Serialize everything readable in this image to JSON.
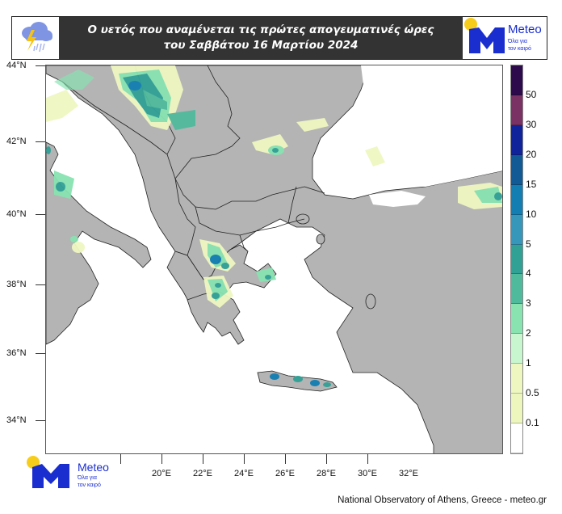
{
  "header": {
    "title_line1": "Ο υετός που αναμένεται τις πρώτες απογευματινές ώρες",
    "title_line2": "του Σαββάτου 16 Μαρτίου 2024",
    "left_icon": "rain-thunder-cloud-icon",
    "logo": {
      "name": "Meteo",
      "tagline_line1": "Όλα για",
      "tagline_line2": "τον καιρό"
    }
  },
  "map": {
    "land_color": "#b4b4b4",
    "sea_color": "#ffffff",
    "lat_labels": [
      "44°N",
      "42°N",
      "40°N",
      "38°N",
      "36°N",
      "34°N"
    ],
    "lon_labels": [
      "20°E",
      "22°E",
      "24°E",
      "26°E",
      "28°E",
      "30°E",
      "32°E"
    ]
  },
  "colorbar": {
    "segments": [
      {
        "color": "#2d0a4b"
      },
      {
        "color": "#7a3163"
      },
      {
        "color": "#11239a"
      },
      {
        "color": "#115a95"
      },
      {
        "color": "#127eb2"
      },
      {
        "color": "#3697ba"
      },
      {
        "color": "#31a196"
      },
      {
        "color": "#4fba9c"
      },
      {
        "color": "#88e3b1"
      },
      {
        "color": "#c8f7cf"
      },
      {
        "color": "#eff7c1"
      },
      {
        "color": "#edf6bd"
      },
      {
        "color": "#ffffff"
      }
    ],
    "labels": [
      "50",
      "30",
      "20",
      "15",
      "10",
      "5",
      "4",
      "3",
      "2",
      "1",
      "0.5",
      "0.1"
    ]
  },
  "footer": {
    "credit": "National Observatory of Athens, Greece - meteo.gr",
    "logo": {
      "name": "Meteo",
      "tagline_line1": "Όλα για",
      "tagline_line2": "τον καιρό"
    }
  }
}
